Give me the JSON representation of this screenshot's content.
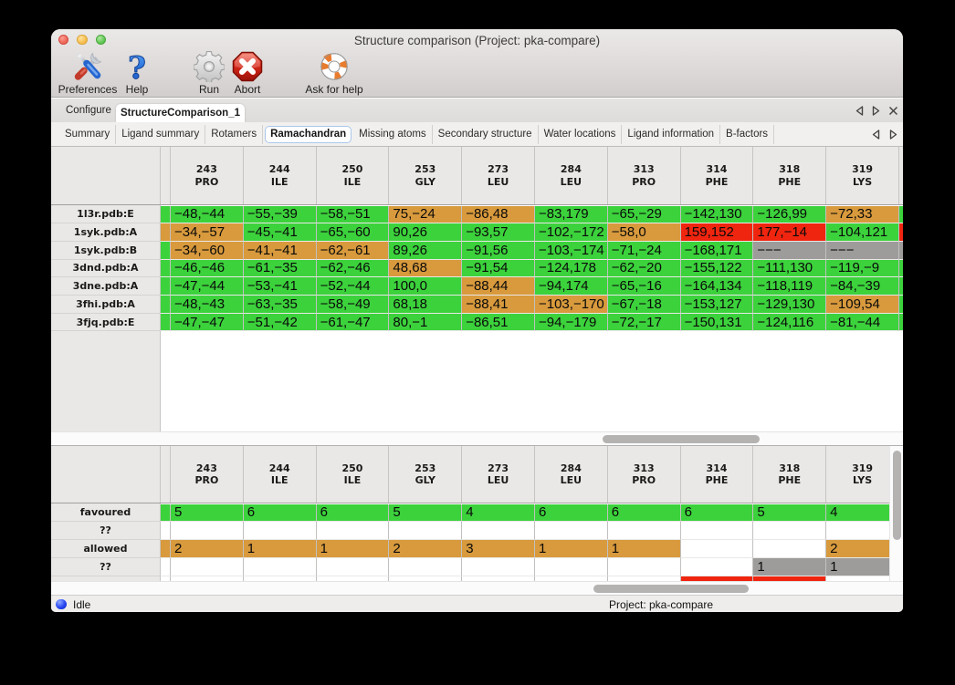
{
  "window": {
    "title": "Structure comparison (Project: pka-compare)"
  },
  "toolbar": {
    "items": [
      {
        "label": "Preferences",
        "icon": "tools-icon"
      },
      {
        "label": "Help",
        "icon": "question-mark-icon"
      },
      {
        "label": "Run",
        "icon": "gear-icon"
      },
      {
        "label": "Abort",
        "icon": "stop-x-icon"
      },
      {
        "label": "Ask for help",
        "icon": "life-ring-icon"
      }
    ]
  },
  "tabs": {
    "items": [
      {
        "label": "Configure",
        "selected": false
      },
      {
        "label": "StructureComparison_1",
        "selected": true
      }
    ]
  },
  "subtabs": {
    "items": [
      "Summary",
      "Ligand summary",
      "Rotamers",
      "Ramachandran",
      "Missing atoms",
      "Secondary structure",
      "Water locations",
      "Ligand information",
      "B-factors"
    ],
    "selected": "Ramachandran"
  },
  "colors": {
    "green": "#3cd23c",
    "orange": "#d89a3d",
    "red": "#f0250f",
    "gray": "#9d9c9b",
    "white": "#ffffff"
  },
  "columns": [
    {
      "number": "243",
      "residue": "PRO"
    },
    {
      "number": "244",
      "residue": "ILE"
    },
    {
      "number": "250",
      "residue": "ILE"
    },
    {
      "number": "253",
      "residue": "GLY"
    },
    {
      "number": "273",
      "residue": "LEU"
    },
    {
      "number": "284",
      "residue": "LEU"
    },
    {
      "number": "313",
      "residue": "PRO"
    },
    {
      "number": "314",
      "residue": "PHE"
    },
    {
      "number": "318",
      "residue": "PHE"
    },
    {
      "number": "319",
      "residue": "LYS"
    }
  ],
  "structures_table": {
    "rows": [
      {
        "label": "1l3r.pdb:E",
        "strip": "green",
        "sliver": "green",
        "cells": [
          {
            "text": "−48,−44",
            "color": "green"
          },
          {
            "text": "−55,−39",
            "color": "green"
          },
          {
            "text": "−58,−51",
            "color": "green"
          },
          {
            "text": "75,−24",
            "color": "orange"
          },
          {
            "text": "−86,48",
            "color": "orange"
          },
          {
            "text": "−83,179",
            "color": "green"
          },
          {
            "text": "−65,−29",
            "color": "green"
          },
          {
            "text": "−142,130",
            "color": "green"
          },
          {
            "text": "−126,99",
            "color": "green"
          },
          {
            "text": "−72,33",
            "color": "orange"
          }
        ]
      },
      {
        "label": "1syk.pdb:A",
        "strip": "orange",
        "sliver": "red",
        "cells": [
          {
            "text": "−34,−57",
            "color": "orange"
          },
          {
            "text": "−45,−41",
            "color": "green"
          },
          {
            "text": "−65,−60",
            "color": "green"
          },
          {
            "text": "90,26",
            "color": "green"
          },
          {
            "text": "−93,57",
            "color": "green"
          },
          {
            "text": "−102,−172",
            "color": "green"
          },
          {
            "text": "−58,0",
            "color": "orange"
          },
          {
            "text": "159,152",
            "color": "red"
          },
          {
            "text": "177,−14",
            "color": "red"
          },
          {
            "text": "−104,121",
            "color": "green"
          }
        ]
      },
      {
        "label": "1syk.pdb:B",
        "strip": "green",
        "sliver": "gray",
        "cells": [
          {
            "text": "−34,−60",
            "color": "orange"
          },
          {
            "text": "−41,−41",
            "color": "orange"
          },
          {
            "text": "−62,−61",
            "color": "orange"
          },
          {
            "text": "89,26",
            "color": "green"
          },
          {
            "text": "−91,56",
            "color": "green"
          },
          {
            "text": "−103,−174",
            "color": "green"
          },
          {
            "text": "−71,−24",
            "color": "green"
          },
          {
            "text": "−168,171",
            "color": "green"
          },
          {
            "text": "−−−",
            "color": "gray"
          },
          {
            "text": "−−−",
            "color": "gray"
          }
        ]
      },
      {
        "label": "3dnd.pdb:A",
        "strip": "green",
        "sliver": "green",
        "cells": [
          {
            "text": "−46,−46",
            "color": "green"
          },
          {
            "text": "−61,−35",
            "color": "green"
          },
          {
            "text": "−62,−46",
            "color": "green"
          },
          {
            "text": "48,68",
            "color": "orange"
          },
          {
            "text": "−91,54",
            "color": "green"
          },
          {
            "text": "−124,178",
            "color": "green"
          },
          {
            "text": "−62,−20",
            "color": "green"
          },
          {
            "text": "−155,122",
            "color": "green"
          },
          {
            "text": "−111,130",
            "color": "green"
          },
          {
            "text": "−119,−9",
            "color": "green"
          }
        ]
      },
      {
        "label": "3dne.pdb:A",
        "strip": "green",
        "sliver": "green",
        "cells": [
          {
            "text": "−47,−44",
            "color": "green"
          },
          {
            "text": "−53,−41",
            "color": "green"
          },
          {
            "text": "−52,−44",
            "color": "green"
          },
          {
            "text": "100,0",
            "color": "green"
          },
          {
            "text": "−88,44",
            "color": "orange"
          },
          {
            "text": "−94,174",
            "color": "green"
          },
          {
            "text": "−65,−16",
            "color": "green"
          },
          {
            "text": "−164,134",
            "color": "green"
          },
          {
            "text": "−118,119",
            "color": "green"
          },
          {
            "text": "−84,−39",
            "color": "green"
          }
        ]
      },
      {
        "label": "3fhi.pdb:A",
        "strip": "green",
        "sliver": "green",
        "cells": [
          {
            "text": "−48,−43",
            "color": "green"
          },
          {
            "text": "−63,−35",
            "color": "green"
          },
          {
            "text": "−58,−49",
            "color": "green"
          },
          {
            "text": "68,18",
            "color": "green"
          },
          {
            "text": "−88,41",
            "color": "orange"
          },
          {
            "text": "−103,−170",
            "color": "orange"
          },
          {
            "text": "−67,−18",
            "color": "green"
          },
          {
            "text": "−153,127",
            "color": "green"
          },
          {
            "text": "−129,130",
            "color": "green"
          },
          {
            "text": "−109,54",
            "color": "orange"
          }
        ]
      },
      {
        "label": "3fjq.pdb:E",
        "strip": "green",
        "sliver": "green",
        "cells": [
          {
            "text": "−47,−47",
            "color": "green"
          },
          {
            "text": "−51,−42",
            "color": "green"
          },
          {
            "text": "−61,−47",
            "color": "green"
          },
          {
            "text": "80,−1",
            "color": "green"
          },
          {
            "text": "−86,51",
            "color": "green"
          },
          {
            "text": "−94,−179",
            "color": "green"
          },
          {
            "text": "−72,−17",
            "color": "green"
          },
          {
            "text": "−150,131",
            "color": "green"
          },
          {
            "text": "−124,116",
            "color": "green"
          },
          {
            "text": "−81,−44",
            "color": "green"
          }
        ]
      }
    ]
  },
  "summary_table": {
    "rows": [
      {
        "label": "favoured",
        "strip": "green",
        "cells": [
          {
            "text": "5",
            "color": "green"
          },
          {
            "text": "6",
            "color": "green"
          },
          {
            "text": "6",
            "color": "green"
          },
          {
            "text": "5",
            "color": "green"
          },
          {
            "text": "4",
            "color": "green"
          },
          {
            "text": "6",
            "color": "green"
          },
          {
            "text": "6",
            "color": "green"
          },
          {
            "text": "6",
            "color": "green"
          },
          {
            "text": "5",
            "color": "green"
          },
          {
            "text": "4",
            "color": "green"
          }
        ]
      },
      {
        "label": "??",
        "strip": "white",
        "cells": [
          {
            "text": "",
            "color": "white"
          },
          {
            "text": "",
            "color": "white"
          },
          {
            "text": "",
            "color": "white"
          },
          {
            "text": "",
            "color": "white"
          },
          {
            "text": "",
            "color": "white"
          },
          {
            "text": "",
            "color": "white"
          },
          {
            "text": "",
            "color": "white"
          },
          {
            "text": "",
            "color": "white"
          },
          {
            "text": "",
            "color": "white"
          },
          {
            "text": "",
            "color": "white"
          }
        ]
      },
      {
        "label": "allowed",
        "strip": "orange",
        "cells": [
          {
            "text": "2",
            "color": "orange"
          },
          {
            "text": "1",
            "color": "orange"
          },
          {
            "text": "1",
            "color": "orange"
          },
          {
            "text": "2",
            "color": "orange"
          },
          {
            "text": "3",
            "color": "orange"
          },
          {
            "text": "1",
            "color": "orange"
          },
          {
            "text": "1",
            "color": "orange"
          },
          {
            "text": "",
            "color": "white"
          },
          {
            "text": "",
            "color": "white"
          },
          {
            "text": "2",
            "color": "orange"
          }
        ]
      },
      {
        "label": "??",
        "strip": "white",
        "cells": [
          {
            "text": "",
            "color": "white"
          },
          {
            "text": "",
            "color": "white"
          },
          {
            "text": "",
            "color": "white"
          },
          {
            "text": "",
            "color": "white"
          },
          {
            "text": "",
            "color": "white"
          },
          {
            "text": "",
            "color": "white"
          },
          {
            "text": "",
            "color": "white"
          },
          {
            "text": "",
            "color": "white"
          },
          {
            "text": "1",
            "color": "gray"
          },
          {
            "text": "1",
            "color": "gray"
          }
        ]
      }
    ],
    "partial_row": {
      "strip": "white",
      "cells": [
        "white",
        "white",
        "white",
        "white",
        "white",
        "white",
        "white",
        "red",
        "red",
        "white"
      ]
    }
  },
  "statusbar": {
    "status": "Idle",
    "project": "Project: pka-compare"
  }
}
